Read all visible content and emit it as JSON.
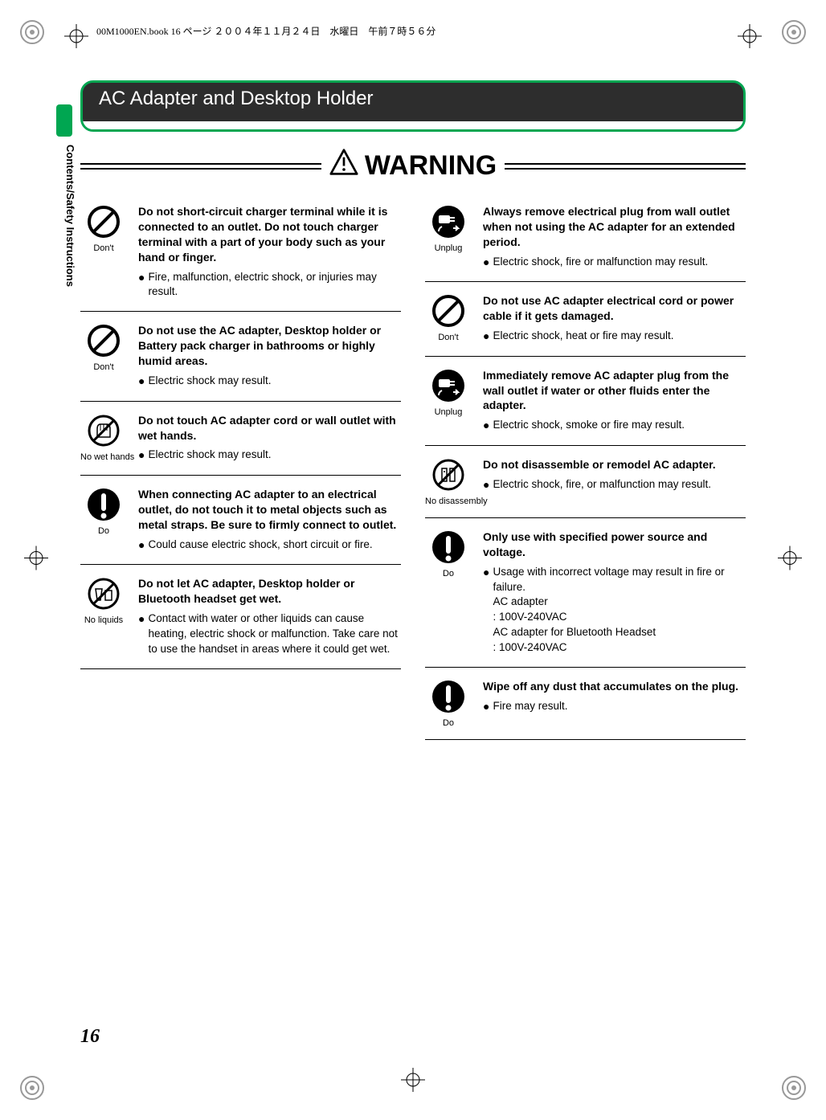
{
  "printHeader": "00M1000EN.book  16 ページ  ２００４年１１月２４日　水曜日　午前７時５６分",
  "sidebarLabel": "Contents/Safety Instructions",
  "title": "AC Adapter and Desktop Holder",
  "warningLabel": "WARNING",
  "pageNumber": "16",
  "iconLabels": {
    "dont": "Don't",
    "noWetHands": "No wet hands",
    "do": "Do",
    "noLiquids": "No liquids",
    "unplug": "Unplug",
    "noDisassembly": "No disassembly"
  },
  "leftItems": [
    {
      "icon": "dont",
      "title": "Do not short-circuit charger terminal while it is connected to an outlet. Do not touch charger terminal with a part of your body such as your hand or finger.",
      "bullets": [
        "Fire, malfunction, electric shock, or injuries may result."
      ]
    },
    {
      "icon": "dont",
      "title": "Do not use the AC adapter, Desktop holder or Battery pack charger in bathrooms or highly humid areas.",
      "bullets": [
        "Electric shock may result."
      ]
    },
    {
      "icon": "noWetHands",
      "title": "Do not touch AC adapter cord or wall outlet with wet hands.",
      "bullets": [
        "Electric shock may result."
      ]
    },
    {
      "icon": "do",
      "title": "When connecting AC adapter to an electrical outlet, do not touch it to metal objects such as metal straps. Be sure to firmly connect to outlet.",
      "bullets": [
        "Could cause electric shock, short circuit or fire."
      ]
    },
    {
      "icon": "noLiquids",
      "title": "Do not let AC adapter, Desktop holder or Bluetooth headset get wet.",
      "bullets": [
        "Contact with water or other liquids can cause heating, electric shock or malfunction. Take care not to use the handset in areas where it could get wet."
      ]
    }
  ],
  "rightItems": [
    {
      "icon": "unplug",
      "title": "Always remove electrical plug from wall outlet when not using the AC adapter for an extended period.",
      "bullets": [
        "Electric shock, fire or malfunction may result."
      ]
    },
    {
      "icon": "dont",
      "title": "Do not use AC adapter electrical cord or power cable if it gets damaged.",
      "bullets": [
        "Electric shock, heat or fire may result."
      ]
    },
    {
      "icon": "unplug",
      "title": "Immediately remove AC adapter plug from the wall outlet if water or other fluids enter the adapter.",
      "bullets": [
        "Electric shock, smoke or fire may result."
      ]
    },
    {
      "icon": "noDisassembly",
      "title": "Do not disassemble or remodel AC adapter.",
      "bullets": [
        "Electric shock, fire, or malfunction may result."
      ]
    },
    {
      "icon": "do",
      "title": "Only use with specified power source and voltage.",
      "bullets": [
        "Usage with incorrect voltage may result in fire or failure.\nAC adapter\n: 100V-240VAC\nAC adapter for Bluetooth Headset\n: 100V-240VAC"
      ]
    },
    {
      "icon": "do",
      "title": "Wipe off any dust that accumulates on the plug.",
      "bullets": [
        "Fire may result."
      ]
    }
  ]
}
